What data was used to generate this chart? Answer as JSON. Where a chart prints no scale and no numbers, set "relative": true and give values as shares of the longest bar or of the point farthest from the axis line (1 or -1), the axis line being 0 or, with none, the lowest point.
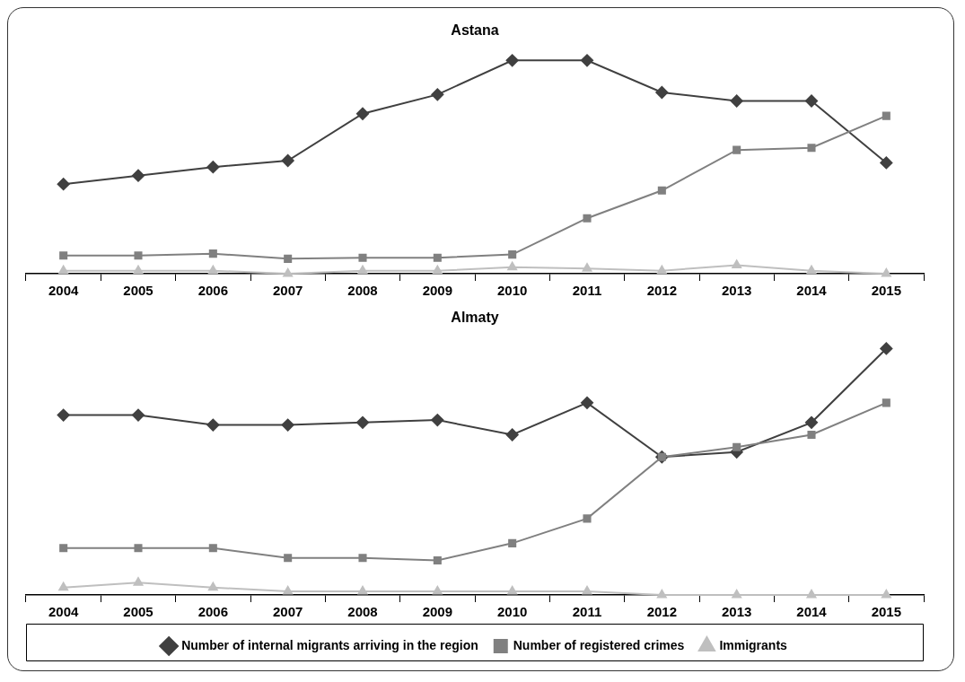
{
  "chart_data": [
    {
      "type": "line",
      "title": "Astana",
      "relative": true,
      "categories": [
        "2004",
        "2005",
        "2006",
        "2007",
        "2008",
        "2009",
        "2010",
        "2011",
        "2012",
        "2013",
        "2014",
        "2015"
      ],
      "series": [
        {
          "color": "#404040",
          "marker": "diamond",
          "values": [
            0.42,
            0.46,
            0.5,
            0.53,
            0.75,
            0.84,
            1,
            1,
            0.85,
            0.81,
            0.81,
            0.52
          ]
        },
        {
          "color": "#808080",
          "marker": "square",
          "values": [
            0.085,
            0.085,
            0.094,
            0.07,
            0.075,
            0.075,
            0.09,
            0.26,
            0.39,
            0.58,
            0.59,
            0.74
          ]
        },
        {
          "color": "#bfbfbf",
          "marker": "triangle",
          "values": [
            0.014,
            0.014,
            0.014,
            0,
            0.014,
            0.014,
            0.03,
            0.024,
            0.014,
            0.04,
            0.014,
            0
          ]
        }
      ],
      "legend": false
    },
    {
      "type": "line",
      "title": "Almaty",
      "relative": true,
      "categories": [
        "2004",
        "2005",
        "2006",
        "2007",
        "2008",
        "2009",
        "2010",
        "2011",
        "2012",
        "2013",
        "2014",
        "2015"
      ],
      "series": [
        {
          "name": "Number of internal migrants arriving in the region",
          "color": "#404040",
          "marker": "diamond",
          "values": [
            0.73,
            0.73,
            0.69,
            0.69,
            0.7,
            0.71,
            0.65,
            0.78,
            0.56,
            0.58,
            0.7,
            1
          ]
        },
        {
          "name": "Number of registered crimes",
          "color": "#808080",
          "marker": "square",
          "values": [
            0.19,
            0.19,
            0.19,
            0.15,
            0.15,
            0.14,
            0.21,
            0.31,
            0.56,
            0.6,
            0.65,
            0.78
          ]
        },
        {
          "name": "Immigrants",
          "color": "#bfbfbf",
          "marker": "triangle",
          "values": [
            0.03,
            0.05,
            0.03,
            0.015,
            0.015,
            0.015,
            0.015,
            0.015,
            0,
            0,
            0,
            0
          ]
        }
      ],
      "legend": "bottom"
    }
  ]
}
